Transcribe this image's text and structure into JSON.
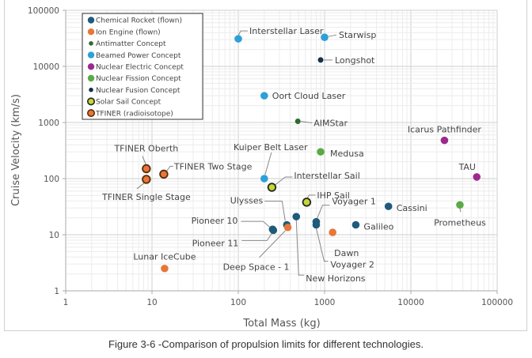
{
  "chart_data": {
    "type": "scatter",
    "title": "",
    "xlabel": "Total Mass (kg)",
    "ylabel": "Cruise Velocity (km/s)",
    "xscale": "log",
    "yscale": "log",
    "xlim": [
      1,
      100000
    ],
    "ylim": [
      1,
      100000
    ],
    "xticks": [
      "1",
      "10",
      "100",
      "1000",
      "10000",
      "100000"
    ],
    "yticks": [
      "1",
      "10",
      "100",
      "1000",
      "10000",
      "100000"
    ],
    "grid": true,
    "legend_position": "top-left",
    "categories": [
      {
        "name": "Chemical Rocket (flown)",
        "color": "#1f5a7a",
        "border": "#1f5a7a"
      },
      {
        "name": "Ion Engine (flown)",
        "color": "#e8763a",
        "border": "#e8763a"
      },
      {
        "name": "Antimatter Concept",
        "color": "#2f6b2f",
        "border": "#2f6b2f",
        "small": true
      },
      {
        "name": "Beamed Power Concept",
        "color": "#2ea0d8",
        "border": "#2ea0d8"
      },
      {
        "name": "Nuclear Electric  Concept",
        "color": "#9c2a8e",
        "border": "#9c2a8e"
      },
      {
        "name": "Nuclear Fission  Concept",
        "color": "#5aaa46",
        "border": "#5aaa46"
      },
      {
        "name": "Nuclear Fusion  Concept",
        "color": "#15304a",
        "border": "#15304a",
        "small": true
      },
      {
        "name": "Solar Sail Concept",
        "color": "#c9d43a",
        "border": "#1e2a1a"
      },
      {
        "name": "TFINER (radioisotope)",
        "color": "#e8763a",
        "border": "#5a2a0a"
      }
    ],
    "points": [
      {
        "label": "Interstellar Laser",
        "category": 3,
        "x": 100,
        "y": 31000
      },
      {
        "label": "Starwisp",
        "category": 3,
        "x": 1000,
        "y": 33000
      },
      {
        "label": "Longshot",
        "category": 6,
        "x": 900,
        "y": 13000
      },
      {
        "label": "Oort Cloud Laser",
        "category": 3,
        "x": 200,
        "y": 3000
      },
      {
        "label": "AIMStar",
        "category": 2,
        "x": 490,
        "y": 1050
      },
      {
        "label": "Medusa",
        "category": 5,
        "x": 900,
        "y": 300
      },
      {
        "label": "Icarus Pathfinder",
        "category": 4,
        "x": 24500,
        "y": 480
      },
      {
        "label": "TAU",
        "category": 4,
        "x": 58000,
        "y": 107
      },
      {
        "label": "Kuiper Belt Laser",
        "category": 3,
        "x": 200,
        "y": 100
      },
      {
        "label": "Interstellar Sail",
        "category": 7,
        "x": 245,
        "y": 70
      },
      {
        "label": "IHP Sail",
        "category": 7,
        "x": 620,
        "y": 38
      },
      {
        "label": "TFINER Oberth",
        "category": 8,
        "x": 8.6,
        "y": 150
      },
      {
        "label": "TFINER Two Stage",
        "category": 8,
        "x": 13.7,
        "y": 120
      },
      {
        "label": "TFINER Single Stage",
        "category": 8,
        "x": 8.6,
        "y": 97
      },
      {
        "label": "Ulysses",
        "category": 0,
        "x": 365,
        "y": 15
      },
      {
        "label": "Pioneer 10",
        "category": 0,
        "x": 250,
        "y": 12.5
      },
      {
        "label": "Pioneer 11",
        "category": 0,
        "x": 255,
        "y": 12
      },
      {
        "label": "Deep Space - 1",
        "category": 1,
        "x": 375,
        "y": 13.5
      },
      {
        "label": "New Horizons",
        "category": 0,
        "x": 470,
        "y": 21
      },
      {
        "label": "Voyager 1",
        "category": 0,
        "x": 800,
        "y": 17
      },
      {
        "label": "Voyager 2",
        "category": 0,
        "x": 800,
        "y": 15
      },
      {
        "label": "Galileo",
        "category": 0,
        "x": 2300,
        "y": 15
      },
      {
        "label": "Dawn",
        "category": 1,
        "x": 1240,
        "y": 11
      },
      {
        "label": "Cassini",
        "category": 0,
        "x": 5500,
        "y": 32
      },
      {
        "label": "Prometheus",
        "category": 5,
        "x": 37000,
        "y": 34
      },
      {
        "label": "Lunar IceCube",
        "category": 1,
        "x": 14,
        "y": 2.5
      }
    ]
  },
  "caption": "Figure 3-6 -Comparison of propulsion limits for different technologies."
}
